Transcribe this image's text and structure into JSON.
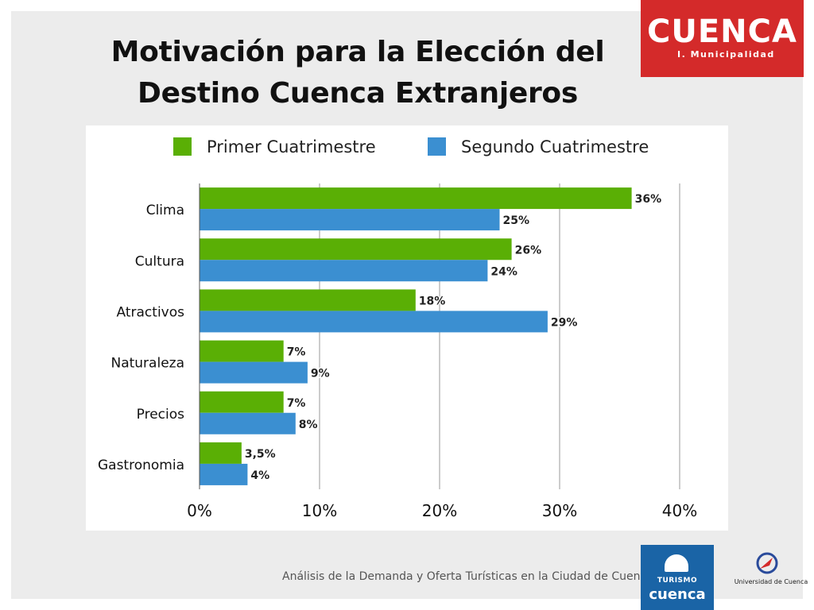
{
  "slide": {
    "title_line1": "Motivación para la Elección del",
    "title_line2": "Destino Cuenca Extranjeros",
    "footer": "Análisis de la Demanda y Oferta Turísticas en la Ciudad de Cuenca"
  },
  "logos": {
    "top_right_wordmark": "CUENCA",
    "top_right_subtitle": "I. Municipalidad",
    "bottom_center_small": "TURISMO",
    "bottom_center_big": "cuenca",
    "bottom_right": "Universidad de Cuenca"
  },
  "colors": {
    "series1": "#5aaf05",
    "series2": "#3b8fd1",
    "logo_red": "#d42a2a",
    "logo_blue": "#1a64a6"
  },
  "chart_data": {
    "type": "bar",
    "orientation": "horizontal",
    "categories": [
      "Clima",
      "Cultura",
      "Atractivos",
      "Naturaleza",
      "Precios",
      "Gastronomia"
    ],
    "series": [
      {
        "name": "Primer Cuatrimestre",
        "values": [
          36,
          26,
          18,
          7,
          7,
          3.5
        ],
        "labels": [
          "36%",
          "26%",
          "18%",
          "7%",
          "7%",
          "3,5%"
        ]
      },
      {
        "name": "Segundo Cuatrimestre",
        "values": [
          25,
          24,
          29,
          9,
          8,
          4
        ],
        "labels": [
          "25%",
          "24%",
          "29%",
          "9%",
          "8%",
          "4%"
        ]
      }
    ],
    "xlim": [
      0,
      40
    ],
    "xticks": [
      "0%",
      "10%",
      "20%",
      "30%",
      "40%"
    ],
    "grid": true,
    "legend_position": "top"
  }
}
